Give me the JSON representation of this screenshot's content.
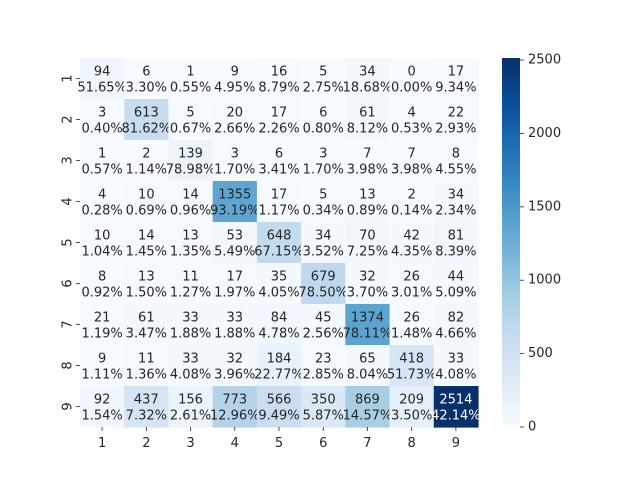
{
  "chart_data": {
    "type": "heatmap",
    "title": "",
    "xlabel": "",
    "ylabel": "",
    "x_labels": [
      "1",
      "2",
      "3",
      "4",
      "5",
      "6",
      "7",
      "8",
      "9"
    ],
    "y_labels": [
      "1",
      "2",
      "3",
      "4",
      "5",
      "6",
      "7",
      "8",
      "9"
    ],
    "values": [
      [
        94,
        6,
        1,
        9,
        16,
        5,
        34,
        0,
        17
      ],
      [
        3,
        613,
        5,
        20,
        17,
        6,
        61,
        4,
        22
      ],
      [
        1,
        2,
        139,
        3,
        6,
        3,
        7,
        7,
        8
      ],
      [
        4,
        10,
        14,
        1355,
        17,
        5,
        13,
        2,
        34
      ],
      [
        10,
        14,
        13,
        53,
        648,
        34,
        70,
        42,
        81
      ],
      [
        8,
        13,
        11,
        17,
        35,
        679,
        32,
        26,
        44
      ],
      [
        21,
        61,
        33,
        33,
        84,
        45,
        1374,
        26,
        82
      ],
      [
        9,
        11,
        33,
        32,
        184,
        23,
        65,
        418,
        33
      ],
      [
        92,
        437,
        156,
        773,
        566,
        350,
        869,
        209,
        2514
      ]
    ],
    "percent_labels": [
      [
        "51.65%",
        "3.30%",
        "0.55%",
        "4.95%",
        "8.79%",
        "2.75%",
        "18.68%",
        "0.00%",
        "9.34%"
      ],
      [
        "0.40%",
        "81.62%",
        "0.67%",
        "2.66%",
        "2.26%",
        "0.80%",
        "8.12%",
        "0.53%",
        "2.93%"
      ],
      [
        "0.57%",
        "1.14%",
        "78.98%",
        "1.70%",
        "3.41%",
        "1.70%",
        "3.98%",
        "3.98%",
        "4.55%"
      ],
      [
        "0.28%",
        "0.69%",
        "0.96%",
        "93.19%",
        "1.17%",
        "0.34%",
        "0.89%",
        "0.14%",
        "2.34%"
      ],
      [
        "1.04%",
        "1.45%",
        "1.35%",
        "5.49%",
        "67.15%",
        "3.52%",
        "7.25%",
        "4.35%",
        "8.39%"
      ],
      [
        "0.92%",
        "1.50%",
        "1.27%",
        "1.97%",
        "4.05%",
        "78.50%",
        "3.70%",
        "3.01%",
        "5.09%"
      ],
      [
        "1.19%",
        "3.47%",
        "1.88%",
        "1.88%",
        "4.78%",
        "2.56%",
        "78.11%",
        "1.48%",
        "4.66%"
      ],
      [
        "1.11%",
        "1.36%",
        "4.08%",
        "3.96%",
        "22.77%",
        "2.85%",
        "8.04%",
        "51.73%",
        "4.08%"
      ],
      [
        "1.54%",
        "7.32%",
        "2.61%",
        "12.96%",
        "9.49%",
        "5.87%",
        "14.57%",
        "3.50%",
        "42.14%"
      ]
    ],
    "colorbar": {
      "min": 0,
      "max": 2514,
      "ticks": [
        0,
        500,
        1000,
        1500,
        2000,
        2500
      ],
      "colormap": "Blues"
    },
    "grid": false,
    "legend": "none"
  }
}
